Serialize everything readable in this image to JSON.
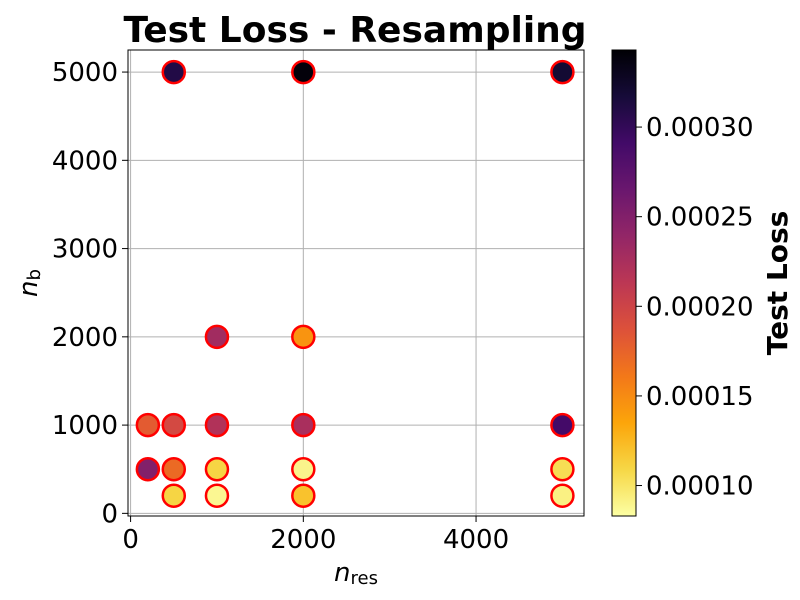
{
  "chart_data": {
    "type": "scatter",
    "title": "Test Loss - Resampling",
    "xlabel": {
      "main": "n",
      "sub": "res"
    },
    "ylabel": {
      "main": "n",
      "sub": "b"
    },
    "colorbar_label": "Test Loss",
    "colormap": "inferno_r",
    "xlim": [
      -30,
      5250
    ],
    "ylim": [
      -30,
      5250
    ],
    "xticks": [
      0,
      2000,
      4000
    ],
    "yticks": [
      0,
      1000,
      2000,
      3000,
      4000,
      5000
    ],
    "grid": true,
    "color_range": [
      8.3e-05,
      0.000343
    ],
    "colorbar_ticks": [
      0.0001,
      0.00015,
      0.0002,
      0.00025,
      0.0003
    ],
    "colorbar_tick_labels": [
      "0.00010",
      "0.00015",
      "0.00020",
      "0.00025",
      "0.00030"
    ],
    "marker_edge_color": "#ff0000",
    "points": [
      {
        "x": 500,
        "y": 5000,
        "loss": 0.00031
      },
      {
        "x": 2000,
        "y": 5000,
        "loss": 0.00034
      },
      {
        "x": 5000,
        "y": 5000,
        "loss": 0.00032
      },
      {
        "x": 1000,
        "y": 2000,
        "loss": 0.00023
      },
      {
        "x": 2000,
        "y": 2000,
        "loss": 0.000145
      },
      {
        "x": 200,
        "y": 1000,
        "loss": 0.00018
      },
      {
        "x": 500,
        "y": 1000,
        "loss": 0.000195
      },
      {
        "x": 1000,
        "y": 1000,
        "loss": 0.00022
      },
      {
        "x": 2000,
        "y": 1000,
        "loss": 0.000225
      },
      {
        "x": 5000,
        "y": 1000,
        "loss": 0.00029
      },
      {
        "x": 200,
        "y": 500,
        "loss": 0.00025
      },
      {
        "x": 500,
        "y": 500,
        "loss": 0.00017
      },
      {
        "x": 1000,
        "y": 500,
        "loss": 0.00011
      },
      {
        "x": 2000,
        "y": 500,
        "loss": 9e-05
      },
      {
        "x": 5000,
        "y": 500,
        "loss": 0.000105
      },
      {
        "x": 500,
        "y": 200,
        "loss": 0.00011
      },
      {
        "x": 1000,
        "y": 200,
        "loss": 8.8e-05
      },
      {
        "x": 2000,
        "y": 200,
        "loss": 0.00012
      },
      {
        "x": 5000,
        "y": 200,
        "loss": 9.2e-05
      }
    ]
  }
}
